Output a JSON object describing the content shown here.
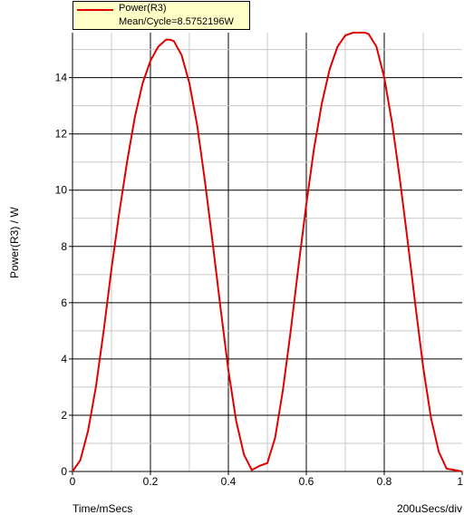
{
  "chart_data": {
    "type": "line",
    "legend": {
      "series_name": "Power(R3)",
      "stat": "Mean/Cycle=8.5752196W"
    },
    "ylabel": "Power(R3) / W",
    "xlabel": "Time/mSecs",
    "xdiv_label": "200uSecs/div",
    "xlim": [
      0,
      1
    ],
    "ylim": [
      0,
      15.6
    ],
    "x_ticks": [
      0,
      0.2,
      0.4,
      0.6,
      0.8,
      1
    ],
    "x_tick_labels": [
      "0",
      "0.2",
      "0.4",
      "0.6",
      "0.8",
      "1"
    ],
    "y_ticks": [
      0,
      2,
      4,
      6,
      8,
      10,
      12,
      14
    ],
    "y_tick_labels": [
      "0",
      "2",
      "4",
      "6",
      "8",
      "10",
      "12",
      "14"
    ],
    "grid": true,
    "line_color": "#e00000",
    "series": [
      {
        "name": "Power(R3)",
        "x": [
          0,
          0.02,
          0.04,
          0.06,
          0.08,
          0.1,
          0.12,
          0.14,
          0.16,
          0.18,
          0.2,
          0.22,
          0.24,
          0.25,
          0.26,
          0.28,
          0.3,
          0.32,
          0.34,
          0.36,
          0.38,
          0.4,
          0.42,
          0.44,
          0.46,
          0.48,
          0.5,
          0.52,
          0.54,
          0.56,
          0.58,
          0.6,
          0.62,
          0.64,
          0.66,
          0.68,
          0.7,
          0.72,
          0.74,
          0.75,
          0.76,
          0.78,
          0.8,
          0.82,
          0.84,
          0.86,
          0.88,
          0.9,
          0.92,
          0.94,
          0.96,
          0.98,
          1.0
        ],
        "y": [
          0,
          0.4,
          1.45,
          3.0,
          5.0,
          7.2,
          9.2,
          11.0,
          12.6,
          13.8,
          14.6,
          15.1,
          15.35,
          15.35,
          15.3,
          14.8,
          13.8,
          12.3,
          10.3,
          8.1,
          5.8,
          3.6,
          1.8,
          0.6,
          0.05,
          0.2,
          0.3,
          1.2,
          2.9,
          5.0,
          7.3,
          9.5,
          11.5,
          13.1,
          14.3,
          15.1,
          15.5,
          15.6,
          15.6,
          15.6,
          15.55,
          15.1,
          14.0,
          12.4,
          10.4,
          8.2,
          5.9,
          3.7,
          1.9,
          0.7,
          0.1,
          0.05,
          0
        ]
      }
    ]
  }
}
